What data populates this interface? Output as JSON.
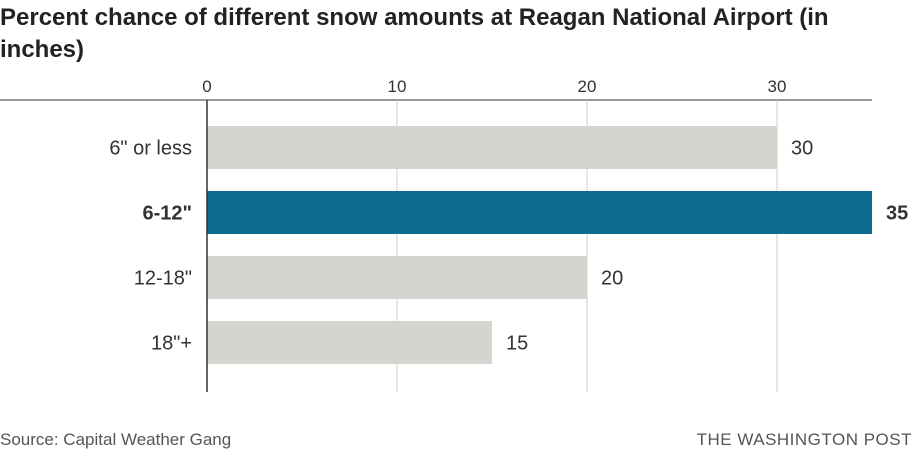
{
  "title": "Percent chance of different snow amounts at Reagan National Airport (in inches)",
  "source": "Source: Capital Weather Gang",
  "credit": "THE WASHINGTON POST",
  "colors": {
    "bar": "#d5d5d0",
    "highlight": "#0d6b8f",
    "grid": "#cfcfcf",
    "axis": "#333333"
  },
  "chart_data": {
    "type": "bar",
    "orientation": "horizontal",
    "categories": [
      "6\" or less",
      "6-12\"",
      "12-18\"",
      "18\"+"
    ],
    "values": [
      30,
      35,
      20,
      15
    ],
    "value_labels": [
      "30",
      "35",
      "20",
      "15"
    ],
    "highlight": [
      "6-12\""
    ],
    "x_ticks": [
      0,
      10,
      20,
      30
    ],
    "xlim": [
      0,
      35
    ],
    "grid": true
  }
}
